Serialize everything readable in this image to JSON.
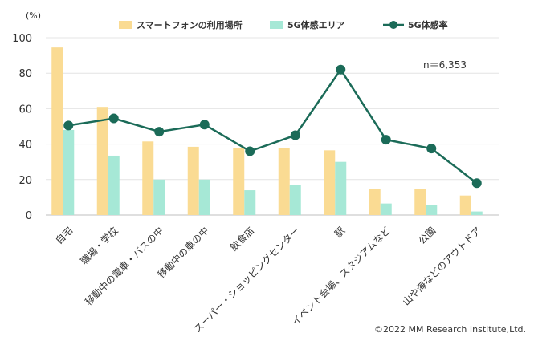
{
  "chart_data": {
    "type": "bar",
    "unit_label": "(%)",
    "categories": [
      "自宅",
      "職場・学校",
      "移動中の電車・バスの中",
      "移動中の車の中",
      "飲食店",
      "スーパー・ショッピングセンター",
      "駅",
      "イベント会場、スタジアムなど",
      "公園",
      "山や海などのアウトドア"
    ],
    "series": [
      {
        "name": "スマートフォンの利用場所",
        "kind": "bar",
        "color": "#FADB93",
        "values": [
          94.5,
          61,
          41.5,
          38.5,
          38,
          38,
          36.5,
          14.5,
          14.5,
          11
        ]
      },
      {
        "name": "5G体感エリア",
        "kind": "bar",
        "color": "#A6E8D6",
        "values": [
          48,
          33.5,
          20,
          20,
          14,
          17,
          30,
          6.5,
          5.5,
          2
        ]
      },
      {
        "name": "5G体感率",
        "kind": "line",
        "color": "#1B6B58",
        "values": [
          50.5,
          54.5,
          47,
          51,
          36,
          45,
          82,
          42.5,
          37.5,
          18
        ]
      }
    ],
    "ylim": [
      0,
      100
    ],
    "yticks": [
      0,
      20,
      40,
      60,
      80,
      100
    ],
    "note": "n＝6,353",
    "legend_position": "top",
    "grid": true
  },
  "copyright": "©2022 MM Research Institute,Ltd."
}
